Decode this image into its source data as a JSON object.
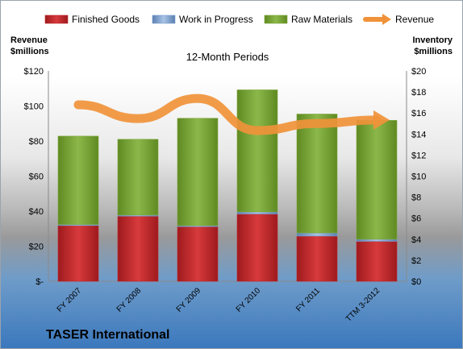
{
  "chart_data": {
    "type": "bar",
    "subtitle": "12-Month Periods",
    "footer": "TASER International",
    "left_axis_title": [
      "Revenue",
      "$millions"
    ],
    "right_axis_title": [
      "Inventory",
      "$millions"
    ],
    "categories": [
      "FY 2007",
      "FY 2008",
      "FY 2009",
      "FY 2010",
      "FY 2011",
      "TTM 3-2012"
    ],
    "left_ticks": [
      "$-",
      "$20",
      "$40",
      "$60",
      "$80",
      "$100",
      "$120"
    ],
    "right_ticks": [
      "$0",
      "$2",
      "$4",
      "$6",
      "$8",
      "$10",
      "$12",
      "$14",
      "$16",
      "$18",
      "$20"
    ],
    "ylim_left": [
      0,
      120
    ],
    "ylim_right": [
      0,
      20
    ],
    "stacked_series": [
      {
        "name": "Finished Goods",
        "color": "#c0262a",
        "axis": "right",
        "values": [
          5.3,
          6.2,
          5.2,
          6.4,
          4.3,
          3.8
        ]
      },
      {
        "name": "Work in Progress",
        "color": "#7aa0d0",
        "axis": "right",
        "values": [
          0.1,
          0.1,
          0.1,
          0.2,
          0.3,
          0.2
        ]
      },
      {
        "name": "Raw Materials",
        "color": "#7ea63a",
        "axis": "right",
        "values": [
          8.4,
          7.2,
          10.2,
          11.6,
          11.3,
          11.3
        ]
      }
    ],
    "line_series": {
      "name": "Revenue",
      "color": "#f0923a",
      "axis": "left",
      "values": [
        100.7,
        92.8,
        104.3,
        86.0,
        90.0,
        92.0
      ]
    },
    "legend_position": "top"
  }
}
